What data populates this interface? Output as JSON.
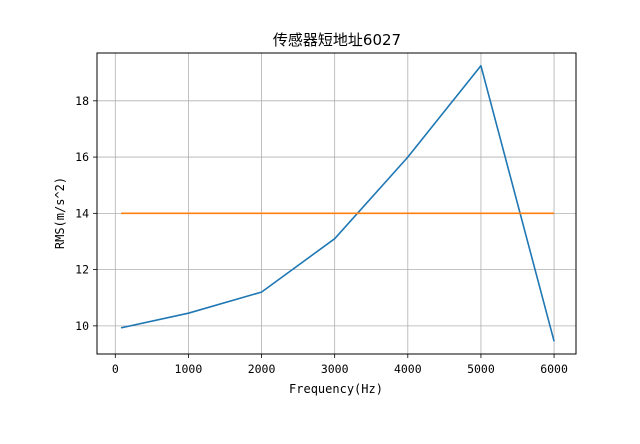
{
  "chart_data": {
    "type": "line",
    "title": "传感器短地址6027",
    "xlabel": "Frequency(Hz)",
    "ylabel": "RMS(m/s^2)",
    "xlim": [
      -250,
      6300
    ],
    "ylim": [
      9.0,
      19.7
    ],
    "x_ticks": [
      0,
      1000,
      2000,
      3000,
      4000,
      5000,
      6000
    ],
    "y_ticks": [
      10,
      12,
      14,
      16,
      18
    ],
    "grid": true,
    "series": [
      {
        "color": "#1f77b4",
        "points": [
          [
            80,
            9.93
          ],
          [
            1000,
            10.45
          ],
          [
            2000,
            11.2
          ],
          [
            3000,
            13.1
          ],
          [
            4000,
            16.0
          ],
          [
            5000,
            19.25
          ],
          [
            6000,
            9.45
          ]
        ]
      },
      {
        "color": "#ff7f0e",
        "points": [
          [
            80,
            14.0
          ],
          [
            6000,
            14.0
          ]
        ]
      }
    ]
  }
}
